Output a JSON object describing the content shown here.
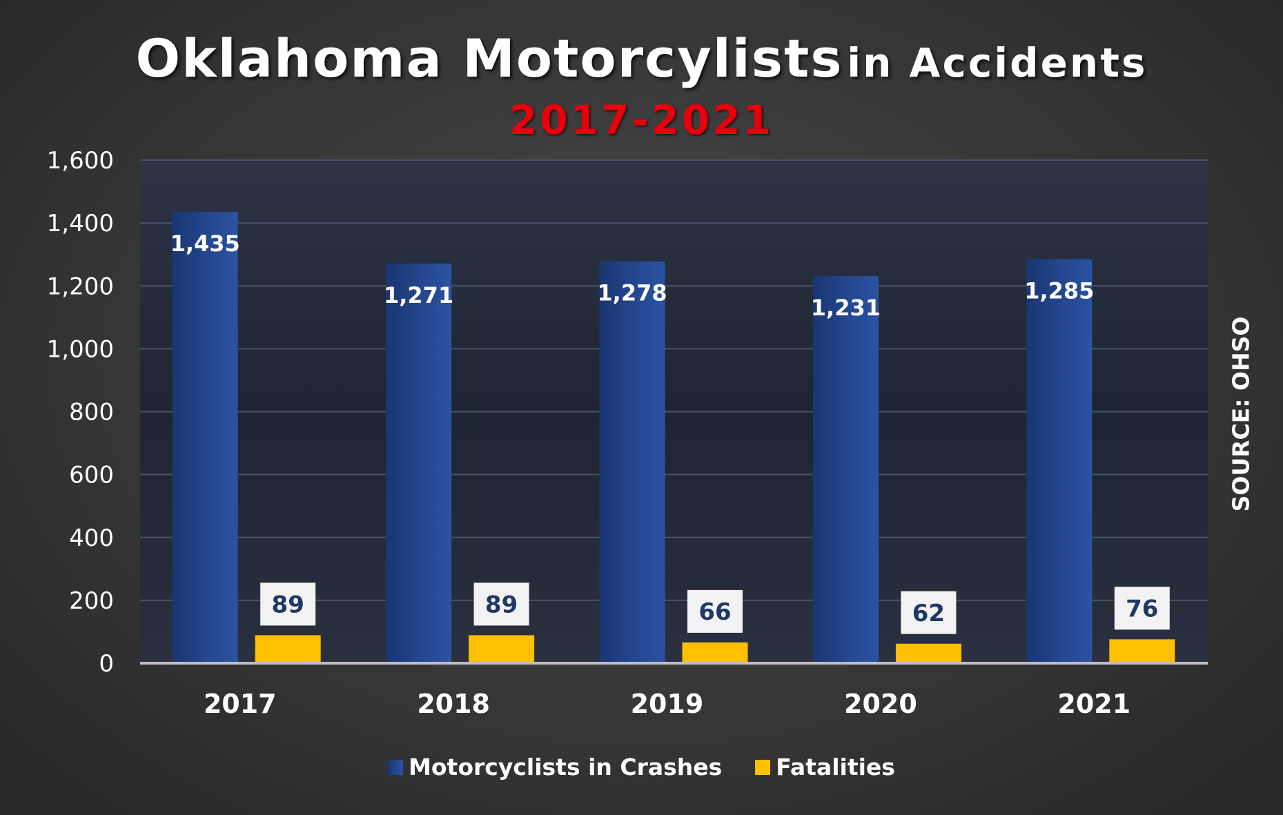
{
  "title_part1": "Oklahoma Motorcylists",
  "title_part2": "in Accidents",
  "subtitle": "2017-2021",
  "source": "SOURCE: OHSO",
  "colors": {
    "crashes": "#24478f",
    "fatalities": "#ffc000",
    "subtitle": "#e8000c",
    "text": "#ffffff",
    "fatality_label_bg": "#f2f2f2",
    "fatality_label_text": "#1f3864"
  },
  "chart_data": {
    "type": "bar",
    "title": "Oklahoma Motorcylists in Accidents",
    "subtitle": "2017-2021",
    "categories": [
      "2017",
      "2018",
      "2019",
      "2020",
      "2021"
    ],
    "series": [
      {
        "name": "Motorcyclists in Crashes",
        "values": [
          1435,
          1271,
          1278,
          1231,
          1285
        ]
      },
      {
        "name": "Fatalities",
        "values": [
          89,
          89,
          66,
          62,
          76
        ]
      }
    ],
    "data_labels": {
      "crashes": [
        "1,435",
        "1,271",
        "1,278",
        "1,231",
        "1,285"
      ],
      "fatalities": [
        "89",
        "89",
        "66",
        "62",
        "76"
      ]
    },
    "yticks": [
      "0",
      "200",
      "400",
      "600",
      "800",
      "1,000",
      "1,200",
      "1,400",
      "1,600"
    ],
    "ylim": [
      0,
      1600
    ],
    "grid": true,
    "legend": "bottom"
  }
}
